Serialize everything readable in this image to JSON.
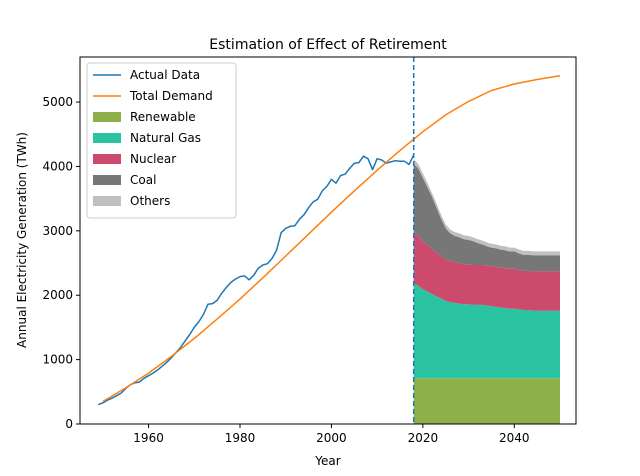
{
  "chart_data": {
    "type": "area",
    "title": "Estimation of Effect of Retirement",
    "xlabel": "Year",
    "ylabel": "Annual Electricity Generation (TWh)",
    "xlim": [
      1945,
      2053.5
    ],
    "ylim": [
      0,
      5700
    ],
    "x_ticks": [
      1960,
      1980,
      2000,
      2020,
      2040
    ],
    "y_ticks": [
      0,
      1000,
      2000,
      3000,
      4000,
      5000
    ],
    "vline_x": 2018,
    "legend_position": "upper-left",
    "colors": {
      "actual": "#1f77b4",
      "demand": "#ff7f0e",
      "renewable": "#8fb048",
      "natural_gas": "#2bc4a2",
      "nuclear": "#cc4a6b",
      "coal": "#777777",
      "others": "#c0c0c0"
    },
    "legend": [
      {
        "label": "Actual Data",
        "kind": "line",
        "key": "actual"
      },
      {
        "label": "Total Demand",
        "kind": "line",
        "key": "demand"
      },
      {
        "label": "Renewable",
        "kind": "patch",
        "key": "renewable"
      },
      {
        "label": "Natural Gas",
        "kind": "patch",
        "key": "natural_gas"
      },
      {
        "label": "Nuclear",
        "kind": "patch",
        "key": "nuclear"
      },
      {
        "label": "Coal",
        "kind": "patch",
        "key": "coal"
      },
      {
        "label": "Others",
        "kind": "patch",
        "key": "others"
      }
    ],
    "actual_data": {
      "x": [
        1949,
        1950,
        1951,
        1952,
        1953,
        1954,
        1955,
        1956,
        1957,
        1958,
        1959,
        1960,
        1961,
        1962,
        1963,
        1964,
        1965,
        1966,
        1967,
        1968,
        1969,
        1970,
        1971,
        1972,
        1973,
        1974,
        1975,
        1976,
        1977,
        1978,
        1979,
        1980,
        1981,
        1982,
        1983,
        1984,
        1985,
        1986,
        1987,
        1988,
        1989,
        1990,
        1991,
        1992,
        1993,
        1994,
        1995,
        1996,
        1997,
        1998,
        1999,
        2000,
        2001,
        2002,
        2003,
        2004,
        2005,
        2006,
        2007,
        2008,
        2009,
        2010,
        2011,
        2012,
        2013,
        2014,
        2015,
        2016,
        2017,
        2018
      ],
      "y": [
        300,
        330,
        370,
        400,
        440,
        480,
        550,
        610,
        640,
        650,
        710,
        750,
        790,
        840,
        900,
        960,
        1030,
        1110,
        1190,
        1290,
        1390,
        1500,
        1590,
        1700,
        1860,
        1870,
        1920,
        2030,
        2120,
        2200,
        2250,
        2290,
        2300,
        2240,
        2310,
        2420,
        2470,
        2490,
        2570,
        2700,
        2970,
        3040,
        3070,
        3080,
        3180,
        3250,
        3360,
        3450,
        3490,
        3620,
        3690,
        3800,
        3740,
        3860,
        3880,
        3970,
        4050,
        4060,
        4160,
        4120,
        3950,
        4120,
        4100,
        4050,
        4070,
        4090,
        4080,
        4080,
        4030,
        4180
      ]
    },
    "total_demand": {
      "x": [
        1950,
        1955,
        1960,
        1965,
        1970,
        1975,
        1980,
        1985,
        1990,
        1995,
        2000,
        2005,
        2010,
        2015,
        2020,
        2025,
        2030,
        2035,
        2040,
        2045,
        2050
      ],
      "y": [
        350,
        560,
        790,
        1050,
        1330,
        1630,
        1940,
        2270,
        2610,
        2950,
        3290,
        3620,
        3940,
        4250,
        4540,
        4800,
        5010,
        5180,
        5280,
        5350,
        5410
      ]
    },
    "projection": {
      "x": [
        2018,
        2019,
        2020,
        2021,
        2022,
        2023,
        2024,
        2025,
        2026,
        2027,
        2028,
        2029,
        2030,
        2031,
        2032,
        2033,
        2034,
        2035,
        2036,
        2037,
        2038,
        2039,
        2040,
        2041,
        2042,
        2043,
        2044,
        2045,
        2046,
        2047,
        2048,
        2049,
        2050
      ],
      "series": [
        {
          "name": "Renewable",
          "key": "renewable",
          "values": [
            710,
            710,
            710,
            710,
            710,
            710,
            710,
            710,
            710,
            710,
            710,
            710,
            710,
            710,
            710,
            710,
            710,
            710,
            710,
            710,
            710,
            710,
            710,
            710,
            710,
            710,
            710,
            710,
            710,
            710,
            710,
            710,
            710
          ]
        },
        {
          "name": "Natural Gas",
          "key": "natural_gas",
          "values": [
            1470,
            1440,
            1380,
            1350,
            1310,
            1270,
            1240,
            1200,
            1180,
            1170,
            1160,
            1150,
            1150,
            1140,
            1140,
            1140,
            1130,
            1120,
            1110,
            1100,
            1090,
            1080,
            1080,
            1070,
            1060,
            1060,
            1050,
            1050,
            1050,
            1050,
            1050,
            1050,
            1050
          ]
        },
        {
          "name": "Nuclear",
          "key": "nuclear",
          "values": [
            790,
            770,
            750,
            720,
            700,
            680,
            660,
            640,
            640,
            630,
            630,
            620,
            620,
            620,
            620,
            620,
            620,
            620,
            620,
            620,
            620,
            620,
            620,
            610,
            610,
            610,
            610,
            610,
            610,
            610,
            610,
            610,
            610
          ]
        },
        {
          "name": "Coal",
          "key": "coal",
          "values": [
            1070,
            1050,
            980,
            900,
            810,
            700,
            580,
            490,
            430,
            410,
            400,
            390,
            380,
            370,
            340,
            320,
            300,
            290,
            290,
            280,
            280,
            270,
            270,
            260,
            250,
            250,
            250,
            250,
            250,
            250,
            250,
            250,
            250
          ]
        },
        {
          "name": "Others",
          "key": "others",
          "values": [
            70,
            70,
            70,
            70,
            60,
            60,
            60,
            60,
            60,
            60,
            60,
            60,
            60,
            60,
            60,
            60,
            60,
            60,
            60,
            60,
            60,
            60,
            60,
            60,
            60,
            60,
            60,
            60,
            60,
            60,
            60,
            60,
            60
          ]
        }
      ]
    }
  }
}
